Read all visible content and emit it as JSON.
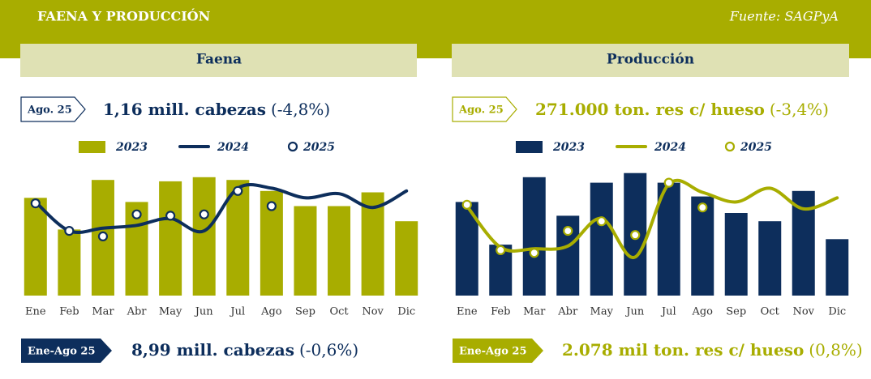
{
  "header": {
    "title": "FAENA Y PRODUCCIÓN",
    "source": "Fuente: SAGPyA"
  },
  "summaries": [
    {
      "tag": "Ago. 25",
      "value": "1,16 mill. cabezas",
      "change": "(-4,8%)",
      "total_tag": "Ene-Ago 25",
      "total_value": "8,99 mill. cabezas",
      "total_change": "(-0,6%)"
    },
    {
      "tag": "Ago. 25",
      "value": "271.000 ton. res c/ hueso",
      "change": "(-3,4%)",
      "total_tag": "Ene-Ago 25",
      "total_value": "2.078 mil ton. res c/ hueso",
      "total_change": "(0,8%)"
    }
  ],
  "chart_data": [
    {
      "type": "combo",
      "title": "Faena",
      "categories": [
        "Ene",
        "Feb",
        "Mar",
        "Abr",
        "May",
        "Jun",
        "Jul",
        "Ago",
        "Sep",
        "Oct",
        "Nov",
        "Dic"
      ],
      "ylim": [
        0,
        100
      ],
      "series": [
        {
          "name": "2023",
          "type": "bar",
          "color": "#a8ad00",
          "values": [
            71,
            48,
            84,
            68,
            83,
            86,
            84,
            76,
            65,
            65,
            75,
            54
          ]
        },
        {
          "name": "2024",
          "type": "line",
          "color": "#0d2e5c",
          "values": [
            68,
            47,
            49,
            51,
            56,
            47,
            78,
            78,
            71,
            74,
            64,
            76
          ]
        },
        {
          "name": "2025",
          "type": "scatter",
          "color": "#0d2e5c",
          "values": [
            67,
            47,
            43,
            59,
            58,
            59,
            76,
            65,
            null,
            null,
            null,
            null
          ]
        }
      ]
    },
    {
      "type": "combo",
      "title": "Producción",
      "categories": [
        "Ene",
        "Feb",
        "Mar",
        "Abr",
        "May",
        "Jun",
        "Jul",
        "Ago",
        "Sep",
        "Oct",
        "Nov",
        "Dic"
      ],
      "ylim": [
        0,
        100
      ],
      "series": [
        {
          "name": "2023",
          "type": "bar",
          "color": "#0d2e5c",
          "values": [
            68,
            37,
            86,
            58,
            82,
            89,
            82,
            72,
            60,
            54,
            76,
            41
          ]
        },
        {
          "name": "2024",
          "type": "line",
          "color": "#a8ad00",
          "values": [
            65,
            35,
            34,
            36,
            56,
            28,
            81,
            75,
            68,
            78,
            63,
            71
          ]
        },
        {
          "name": "2025",
          "type": "scatter",
          "color": "#a8ad00",
          "values": [
            66,
            33,
            31,
            47,
            54,
            44,
            82,
            64,
            null,
            null,
            null,
            null
          ]
        }
      ]
    }
  ]
}
